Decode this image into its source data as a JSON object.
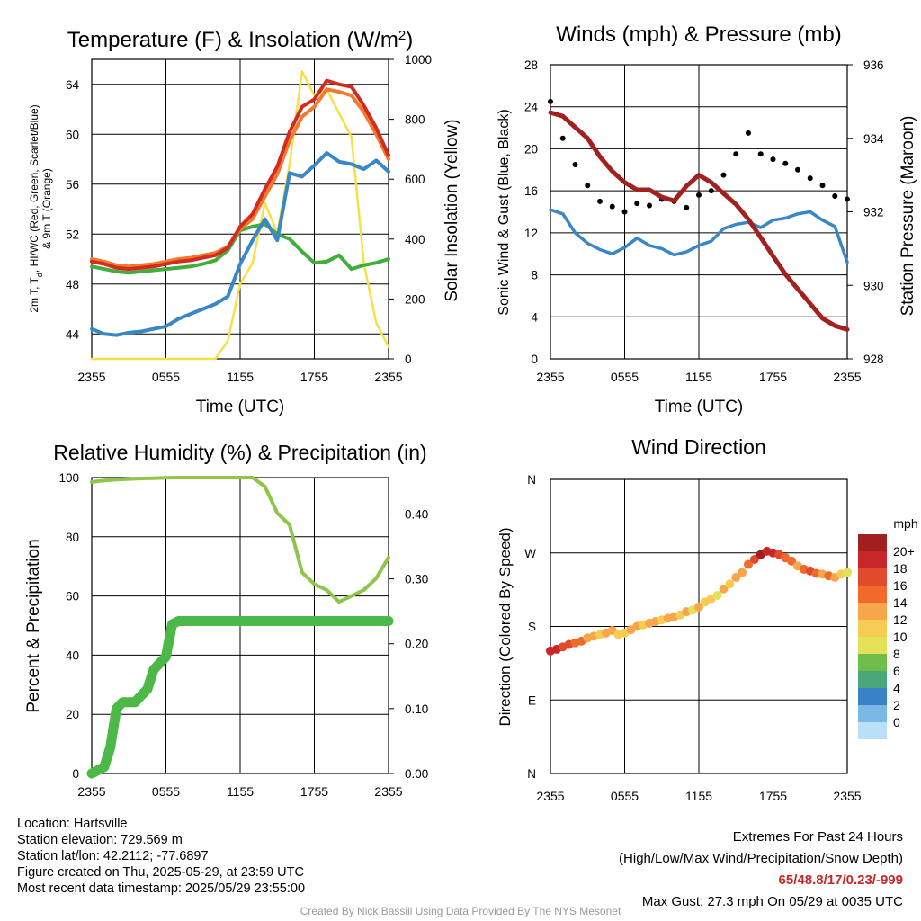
{
  "panels": {
    "temperature": {
      "title": "Temperature (F) & Insolation (W/m²)",
      "ylabel_left": "2m T, Td, HI/WC (Red, Green, Scarlet/Blue) & 9m T (Orange)",
      "ylabel_left_line1": "2m T, T",
      "ylabel_left_sub": "d",
      "ylabel_left_line1b": ", HI/WC (Red, Green, Scarlet/Blue)",
      "ylabel_left_line2": "& 9m T (Orange)",
      "ylabel_right": "Solar Insolation (Yellow)",
      "xlabel": "Time (UTC)"
    },
    "winds": {
      "title": "Winds (mph) & Pressure (mb)",
      "ylabel_left": "Sonic Wind & Gust (Blue, Black)",
      "ylabel_right": "Station Pressure (Maroon)",
      "xlabel": "Time (UTC)"
    },
    "humidity": {
      "title": "Relative Humidity (%) & Precipitation (in)",
      "ylabel_left": "Percent & Precipitation",
      "xlabel": ""
    },
    "direction": {
      "title": "Wind Direction",
      "ylabel_left": "Direction (Colored By Speed)",
      "legend_unit": "mph"
    }
  },
  "x_ticks": [
    "2355",
    "0555",
    "1155",
    "1755",
    "2355"
  ],
  "chart_data": [
    {
      "type": "line",
      "title": "Temperature (F) & Insolation (W/m²)",
      "xlabel": "Time (UTC)",
      "x_hours": [
        0,
        6,
        12,
        18,
        24
      ],
      "ylim_left": [
        42,
        66
      ],
      "yticks_left": [
        44,
        48,
        52,
        56,
        60,
        64
      ],
      "ylim_right": [
        0,
        1000
      ],
      "yticks_right": [
        0,
        200,
        400,
        600,
        800,
        1000
      ],
      "series": [
        {
          "name": "2m T",
          "color": "#d42a20",
          "axis": "left",
          "x": [
            0,
            1,
            2,
            3,
            4,
            5,
            6,
            7,
            8,
            9,
            10,
            11,
            12,
            13,
            14,
            15,
            16,
            17,
            18,
            19,
            20,
            21,
            22,
            23,
            24
          ],
          "values": [
            49.8,
            49.6,
            49.3,
            49.2,
            49.3,
            49.4,
            49.6,
            49.8,
            49.9,
            50.1,
            50.3,
            50.9,
            52.6,
            53.6,
            55.6,
            57.4,
            60.2,
            62.2,
            62.8,
            64.3,
            64.0,
            63.8,
            62.3,
            60.5,
            58.3
          ]
        },
        {
          "name": "9m T",
          "color": "#f07b2c",
          "axis": "left",
          "x": [
            0,
            1,
            2,
            3,
            4,
            5,
            6,
            7,
            8,
            9,
            10,
            11,
            12,
            13,
            14,
            15,
            16,
            17,
            18,
            19,
            20,
            21,
            22,
            23,
            24
          ],
          "values": [
            50.0,
            49.8,
            49.5,
            49.4,
            49.5,
            49.6,
            49.8,
            50.0,
            50.1,
            50.3,
            50.5,
            51.0,
            52.4,
            53.2,
            55.0,
            56.8,
            59.5,
            61.4,
            62.2,
            63.6,
            63.4,
            63.1,
            61.8,
            60.0,
            58.0
          ]
        },
        {
          "name": "Td",
          "color": "#3fae3a",
          "axis": "left",
          "x": [
            0,
            1,
            2,
            3,
            4,
            5,
            6,
            7,
            8,
            9,
            10,
            11,
            12,
            13,
            14,
            15,
            16,
            17,
            18,
            19,
            20,
            21,
            22,
            23,
            24
          ],
          "values": [
            49.4,
            49.2,
            49.0,
            48.9,
            49.0,
            49.1,
            49.2,
            49.3,
            49.4,
            49.6,
            49.9,
            50.7,
            52.3,
            52.6,
            52.8,
            52.0,
            51.6,
            50.6,
            49.7,
            49.8,
            50.3,
            49.2,
            49.5,
            49.7,
            50.0
          ]
        },
        {
          "name": "HI/WC",
          "color": "#3a87c8",
          "axis": "left",
          "x": [
            0,
            1,
            2,
            3,
            4,
            5,
            6,
            7,
            8,
            9,
            10,
            11,
            12,
            13,
            14,
            15,
            16,
            17,
            18,
            19,
            20,
            21,
            22,
            23,
            24
          ],
          "values": [
            44.4,
            44.0,
            43.9,
            44.1,
            44.2,
            44.4,
            44.6,
            45.2,
            45.6,
            46.0,
            46.4,
            47.0,
            49.6,
            51.5,
            53.2,
            51.5,
            56.9,
            56.6,
            57.5,
            58.5,
            57.8,
            57.6,
            57.2,
            57.9,
            57.0
          ]
        },
        {
          "name": "Solar Insolation",
          "color": "#f6e04a",
          "axis": "right",
          "x": [
            0,
            1,
            2,
            3,
            4,
            5,
            6,
            7,
            8,
            9,
            10,
            11,
            12,
            13,
            14,
            15,
            16,
            17,
            18,
            19,
            20,
            21,
            22,
            23,
            24
          ],
          "values": [
            0,
            0,
            0,
            0,
            0,
            0,
            0,
            0,
            0,
            0,
            0,
            60,
            250,
            320,
            520,
            420,
            650,
            960,
            880,
            900,
            820,
            740,
            320,
            120,
            40
          ]
        }
      ]
    },
    {
      "type": "line",
      "title": "Winds (mph) & Pressure (mb)",
      "xlabel": "Time (UTC)",
      "x_hours": [
        0,
        6,
        12,
        18,
        24
      ],
      "ylim_left": [
        0,
        28
      ],
      "yticks_left": [
        0,
        4,
        8,
        12,
        16,
        20,
        24,
        28
      ],
      "ylim_right": [
        928,
        936
      ],
      "yticks_right": [
        928,
        930,
        932,
        934,
        936
      ],
      "series": [
        {
          "name": "Sonic Wind",
          "color": "#3a87c8",
          "axis": "left",
          "x": [
            0,
            1,
            2,
            3,
            4,
            5,
            6,
            7,
            8,
            9,
            10,
            11,
            12,
            13,
            14,
            15,
            16,
            17,
            18,
            19,
            20,
            21,
            22,
            23,
            24
          ],
          "values": [
            14.2,
            13.8,
            12.0,
            11.0,
            10.4,
            10.0,
            10.6,
            11.5,
            10.8,
            10.5,
            9.9,
            10.2,
            10.8,
            11.2,
            12.4,
            12.8,
            13.0,
            12.5,
            13.2,
            13.4,
            13.8,
            14.0,
            13.2,
            12.6,
            9.2
          ]
        },
        {
          "name": "Gust",
          "color": "#000000",
          "axis": "left",
          "x": [
            0,
            1,
            2,
            3,
            4,
            5,
            6,
            7,
            8,
            9,
            10,
            11,
            12,
            13,
            14,
            15,
            16,
            17,
            18,
            19,
            20,
            21,
            22,
            23,
            24
          ],
          "values": [
            24.5,
            21.0,
            18.5,
            16.5,
            15.0,
            14.5,
            14.0,
            14.8,
            14.6,
            15.2,
            15.0,
            14.4,
            15.6,
            16.0,
            17.5,
            19.5,
            21.5,
            19.5,
            19.0,
            18.6,
            18.0,
            17.2,
            16.5,
            15.5,
            15.2
          ]
        },
        {
          "name": "Station Pressure",
          "color": "#a3201f",
          "axis": "right",
          "x": [
            0,
            1,
            2,
            3,
            4,
            5,
            6,
            7,
            8,
            9,
            10,
            11,
            12,
            13,
            14,
            15,
            16,
            17,
            18,
            19,
            20,
            21,
            22,
            23,
            24
          ],
          "values": [
            934.7,
            934.6,
            934.3,
            934.0,
            933.5,
            933.1,
            932.8,
            932.6,
            932.6,
            932.4,
            932.3,
            932.7,
            933.0,
            932.8,
            932.5,
            932.2,
            931.8,
            931.3,
            930.8,
            930.3,
            929.9,
            929.5,
            929.1,
            928.9,
            928.8
          ]
        }
      ]
    },
    {
      "type": "line",
      "title": "Relative Humidity (%) & Precipitation (in)",
      "x_hours": [
        0,
        6,
        12,
        18,
        24
      ],
      "ylim_left": [
        0,
        100
      ],
      "yticks_left": [
        0,
        20,
        40,
        60,
        80,
        100
      ],
      "ylim_right": [
        0,
        0.4561
      ],
      "yticks_right": [
        0.0,
        0.1,
        0.2,
        0.3,
        0.4
      ],
      "series": [
        {
          "name": "Relative Humidity",
          "color": "#8fc64a",
          "axis": "left",
          "x": [
            0,
            1,
            2,
            3,
            4,
            5,
            6,
            7,
            8,
            9,
            10,
            11,
            12,
            13,
            14,
            15,
            16,
            17,
            18,
            19,
            20,
            21,
            22,
            23,
            24
          ],
          "values": [
            98.5,
            99.0,
            99.3,
            99.5,
            99.7,
            99.8,
            99.9,
            100,
            100,
            100,
            100,
            100,
            100,
            100,
            97,
            88,
            84,
            68,
            64,
            62,
            58,
            60,
            62,
            66,
            73
          ]
        },
        {
          "name": "Precipitation",
          "color": "#4cb847",
          "axis": "right",
          "x": [
            0,
            0.5,
            1,
            1.5,
            2,
            2.5,
            3,
            3.5,
            4,
            4.5,
            5,
            5.5,
            6,
            6.5,
            7,
            24
          ],
          "values": [
            0,
            0.005,
            0.01,
            0.04,
            0.1,
            0.11,
            0.11,
            0.11,
            0.12,
            0.13,
            0.16,
            0.17,
            0.18,
            0.23,
            0.235,
            0.235
          ]
        }
      ]
    },
    {
      "type": "scatter",
      "title": "Wind Direction",
      "ylabel": "Direction (Colored By Speed)",
      "x_hours": [
        0,
        6,
        12,
        18,
        24
      ],
      "yticks": [
        "N",
        "E",
        "S",
        "W",
        "N"
      ],
      "ylim_deg": [
        0,
        360
      ],
      "points": [
        {
          "x": 0.0,
          "deg": 150,
          "mph": 18
        },
        {
          "x": 0.5,
          "deg": 152,
          "mph": 17
        },
        {
          "x": 1.0,
          "deg": 155,
          "mph": 16
        },
        {
          "x": 1.5,
          "deg": 158,
          "mph": 15
        },
        {
          "x": 2.0,
          "deg": 160,
          "mph": 14
        },
        {
          "x": 2.5,
          "deg": 162,
          "mph": 13
        },
        {
          "x": 3.0,
          "deg": 166,
          "mph": 12
        },
        {
          "x": 3.5,
          "deg": 168,
          "mph": 11
        },
        {
          "x": 4.0,
          "deg": 170,
          "mph": 10
        },
        {
          "x": 4.5,
          "deg": 172,
          "mph": 11
        },
        {
          "x": 5.0,
          "deg": 175,
          "mph": 12
        },
        {
          "x": 5.5,
          "deg": 170,
          "mph": 10
        },
        {
          "x": 6.0,
          "deg": 172,
          "mph": 9
        },
        {
          "x": 6.5,
          "deg": 176,
          "mph": 11
        },
        {
          "x": 7.0,
          "deg": 180,
          "mph": 12
        },
        {
          "x": 7.5,
          "deg": 182,
          "mph": 10
        },
        {
          "x": 8.0,
          "deg": 184,
          "mph": 11
        },
        {
          "x": 8.5,
          "deg": 186,
          "mph": 12
        },
        {
          "x": 9.0,
          "deg": 188,
          "mph": 10
        },
        {
          "x": 9.5,
          "deg": 190,
          "mph": 11
        },
        {
          "x": 10.0,
          "deg": 192,
          "mph": 12
        },
        {
          "x": 10.5,
          "deg": 194,
          "mph": 9
        },
        {
          "x": 11.0,
          "deg": 198,
          "mph": 11
        },
        {
          "x": 11.5,
          "deg": 200,
          "mph": 8
        },
        {
          "x": 12.0,
          "deg": 204,
          "mph": 12
        },
        {
          "x": 12.5,
          "deg": 210,
          "mph": 10
        },
        {
          "x": 13.0,
          "deg": 214,
          "mph": 9
        },
        {
          "x": 13.5,
          "deg": 218,
          "mph": 8
        },
        {
          "x": 14.0,
          "deg": 226,
          "mph": 12
        },
        {
          "x": 14.5,
          "deg": 232,
          "mph": 10
        },
        {
          "x": 15.0,
          "deg": 240,
          "mph": 11
        },
        {
          "x": 15.5,
          "deg": 246,
          "mph": 12
        },
        {
          "x": 16.0,
          "deg": 256,
          "mph": 14
        },
        {
          "x": 16.5,
          "deg": 262,
          "mph": 16
        },
        {
          "x": 17.0,
          "deg": 268,
          "mph": 20
        },
        {
          "x": 17.5,
          "deg": 272,
          "mph": 18
        },
        {
          "x": 18.0,
          "deg": 270,
          "mph": 17
        },
        {
          "x": 18.5,
          "deg": 268,
          "mph": 16
        },
        {
          "x": 19.0,
          "deg": 264,
          "mph": 14
        },
        {
          "x": 19.5,
          "deg": 260,
          "mph": 13
        },
        {
          "x": 20.0,
          "deg": 254,
          "mph": 12
        },
        {
          "x": 20.5,
          "deg": 250,
          "mph": 14
        },
        {
          "x": 21.0,
          "deg": 248,
          "mph": 15
        },
        {
          "x": 21.5,
          "deg": 245,
          "mph": 13
        },
        {
          "x": 22.0,
          "deg": 244,
          "mph": 12
        },
        {
          "x": 22.5,
          "deg": 242,
          "mph": 13
        },
        {
          "x": 23.0,
          "deg": 240,
          "mph": 11
        },
        {
          "x": 23.5,
          "deg": 244,
          "mph": 9
        },
        {
          "x": 24.0,
          "deg": 246,
          "mph": 8
        }
      ],
      "legend": {
        "unit": "mph",
        "levels": [
          "20+",
          "18",
          "16",
          "14",
          "12",
          "10",
          "8",
          "6",
          "4",
          "2",
          "0"
        ],
        "colors": [
          "#a11f1f",
          "#c9262a",
          "#e04b2b",
          "#f06a2c",
          "#f8a64a",
          "#f6cc52",
          "#e2e157",
          "#6fbd4a",
          "#49a77a",
          "#3a82c6",
          "#7bb8e6",
          "#b9e0f6"
        ]
      }
    }
  ],
  "station_info": {
    "location": "Location: Hartsville",
    "elevation": "Station elevation: 729.569 m",
    "latlon": "Station lat/lon: 42.2112; -77.6897",
    "created": "Figure created on Thu, 2025-05-29, at 23:59 UTC",
    "recent": "Most recent data timestamp: 2025/05/29 23:55:00"
  },
  "extremes": {
    "title": "Extremes For Past 24 Hours",
    "subtitle": "(High/Low/Max Wind/Precipitation/Snow Depth)",
    "values": "65/48.8/17/0.23/-999",
    "max_gust": "Max Gust: 27.3 mph On 05/29 at 0035 UTC"
  },
  "credit": "Created By Nick Bassill Using Data Provided By The NYS Mesonet"
}
